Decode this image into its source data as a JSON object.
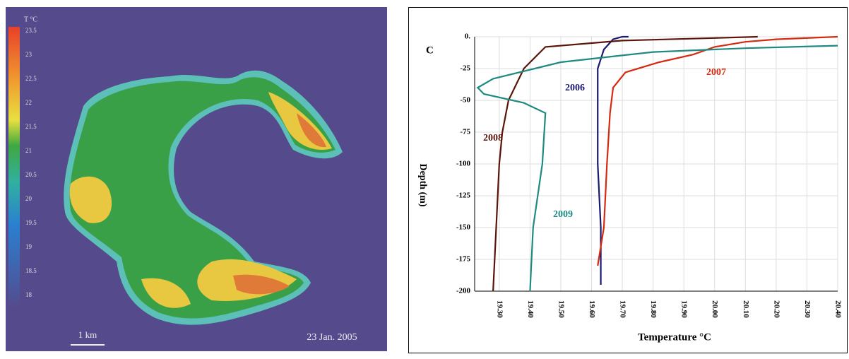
{
  "map": {
    "unit": "T °C",
    "legend_labels": [
      "23.5",
      "23",
      "22.5",
      "22",
      "21.5",
      "21",
      "20.5",
      "20",
      "19.5",
      "19",
      "18.5",
      "18"
    ],
    "scale": "1 km",
    "date": "23 Jan. 2005"
  },
  "chart_data": {
    "type": "line",
    "panel": "C",
    "xlabel": "Temperature °C",
    "ylabel": "Depth (m)",
    "xlim": [
      19.22,
      20.4
    ],
    "xticks": [
      {
        "value": 19.3,
        "label": "19.30"
      },
      {
        "value": 19.4,
        "label": "19.40"
      },
      {
        "value": 19.5,
        "label": "19.50"
      },
      {
        "value": 19.6,
        "label": "19.60"
      },
      {
        "value": 19.7,
        "label": "19.70"
      },
      {
        "value": 19.8,
        "label": "19.80"
      },
      {
        "value": 19.9,
        "label": "19.90"
      },
      {
        "value": 20.0,
        "label": "20.00"
      },
      {
        "value": 20.1,
        "label": "20.10"
      },
      {
        "value": 20.2,
        "label": "20.20"
      },
      {
        "value": 20.3,
        "label": "20.30"
      },
      {
        "value": 20.4,
        "label": "20.40"
      }
    ],
    "ylim": [
      -200,
      0
    ],
    "yticks": [
      {
        "value": 0,
        "label": "0."
      },
      -25,
      -50,
      -75,
      -100,
      -125,
      -150,
      -175,
      -200
    ],
    "grid": true,
    "series": [
      {
        "name": "2006",
        "color": "#1a1a6e",
        "x": [
          19.63,
          19.63,
          19.62,
          19.62,
          19.62,
          19.64,
          19.67,
          19.7,
          19.72
        ],
        "values": [
          -195,
          -150,
          -100,
          -50,
          -25,
          -10,
          -2,
          0,
          0
        ]
      },
      {
        "name": "2007",
        "color": "#d42a10",
        "x": [
          19.62,
          19.64,
          19.65,
          19.66,
          19.67,
          19.71,
          19.82,
          19.93,
          20.0,
          20.1,
          20.2,
          20.4
        ],
        "values": [
          -180,
          -150,
          -100,
          -60,
          -40,
          -28,
          -20,
          -14,
          -8,
          -4,
          -2,
          0
        ]
      },
      {
        "name": "2008",
        "color": "#5a1508",
        "x": [
          19.28,
          19.29,
          19.3,
          19.31,
          19.33,
          19.38,
          19.45,
          19.7,
          20.0,
          20.14
        ],
        "values": [
          -200,
          -150,
          -100,
          -75,
          -50,
          -25,
          -8,
          -3,
          -1,
          0
        ]
      },
      {
        "name": "2009",
        "color": "#1f8a80",
        "x": [
          19.4,
          19.41,
          19.44,
          19.45,
          19.38,
          19.25,
          19.23,
          19.28,
          19.5,
          19.8,
          20.1,
          20.4
        ],
        "values": [
          -200,
          -150,
          -100,
          -60,
          -52,
          -45,
          -40,
          -33,
          -20,
          -12,
          -9,
          -7
        ]
      }
    ]
  }
}
